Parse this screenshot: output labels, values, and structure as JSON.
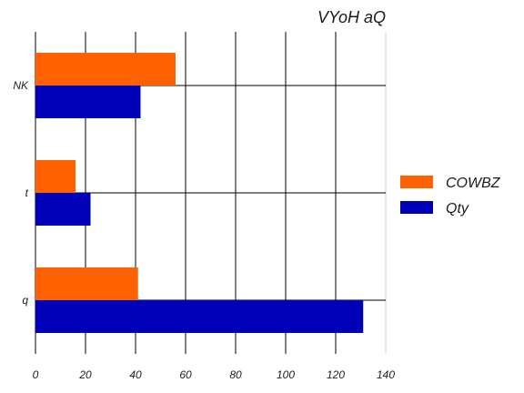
{
  "chart_data": {
    "type": "bar",
    "orientation": "horizontal",
    "title": "VYoH aQ",
    "xlabel": "",
    "ylabel": "",
    "categories": [
      "NK",
      "t",
      "q"
    ],
    "series": [
      {
        "name": "COWBZ",
        "color": "#ff6100",
        "values": [
          56,
          16,
          41
        ]
      },
      {
        "name": "Qty",
        "color": "#0000b8",
        "values": [
          42,
          22,
          131
        ]
      }
    ],
    "xlim": [
      0,
      140
    ],
    "xticks": [
      0,
      20,
      40,
      60,
      80,
      100,
      120,
      140
    ],
    "grid": true,
    "legend_position": "right"
  }
}
